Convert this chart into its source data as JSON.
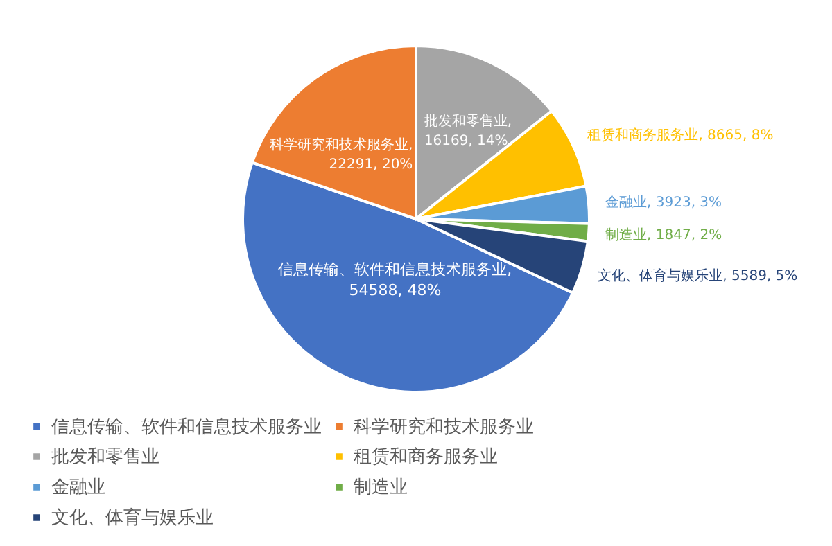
{
  "chart_data": {
    "type": "pie",
    "categories": [
      "信息传输、软件和信息技术服务业",
      "科学研究和技术服务业",
      "批发和零售业",
      "租赁和商务服务业",
      "金融业",
      "制造业",
      "文化、体育与娱乐业"
    ],
    "values": [
      54588,
      22291,
      16169,
      8665,
      3923,
      1847,
      5589
    ],
    "value_labels": [
      "信息传输、软件和信息技术服务业, 54588, 48%",
      "科学研究和技术服务业, 22291, 20%",
      "批发和零售业, 16169, 14%",
      "租赁和商务服务业, 8665, 8%",
      "金融业, 3923, 3%",
      "制造业, 1847, 2%",
      "文化、体育与娱乐业, 5589, 5%"
    ],
    "colors": [
      "#4472c4",
      "#ed7d31",
      "#a5a5a5",
      "#ffc000",
      "#5b9bd5",
      "#70ad47",
      "#264478"
    ],
    "legend": "bottom"
  }
}
